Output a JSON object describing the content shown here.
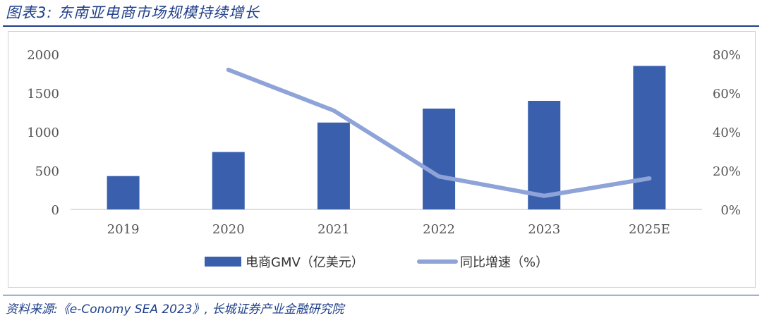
{
  "figure": {
    "title": "图表3:  东南亚电商市场规模持续增长",
    "source": "资料来源:《e-Conomy SEA 2023》, 长城证券产业金融研究院"
  },
  "chart_data": {
    "type": "bar",
    "categories": [
      "2019",
      "2020",
      "2021",
      "2022",
      "2023",
      "2025E"
    ],
    "series": [
      {
        "name": "电商GMV（亿美元）",
        "type": "bar",
        "axis": "left",
        "values": [
          430,
          740,
          1120,
          1300,
          1400,
          1850
        ]
      },
      {
        "name": "同比增速（%）",
        "type": "line",
        "axis": "right",
        "values": [
          null,
          72,
          51,
          17,
          7,
          16
        ]
      }
    ],
    "y_left": {
      "min": 0,
      "max": 2000,
      "ticks": [
        0,
        500,
        1000,
        1500,
        2000
      ],
      "tick_labels": [
        "0",
        "500",
        "1000",
        "1500",
        "2000"
      ]
    },
    "y_right": {
      "min": 0,
      "max": 80,
      "ticks": [
        0,
        20,
        40,
        60,
        80
      ],
      "tick_labels": [
        "0%",
        "20%",
        "40%",
        "60%",
        "80%"
      ]
    },
    "legend_position": "bottom",
    "grid": false,
    "colors": {
      "bar": "#3a60ad",
      "line": "#8ea3d8"
    }
  }
}
